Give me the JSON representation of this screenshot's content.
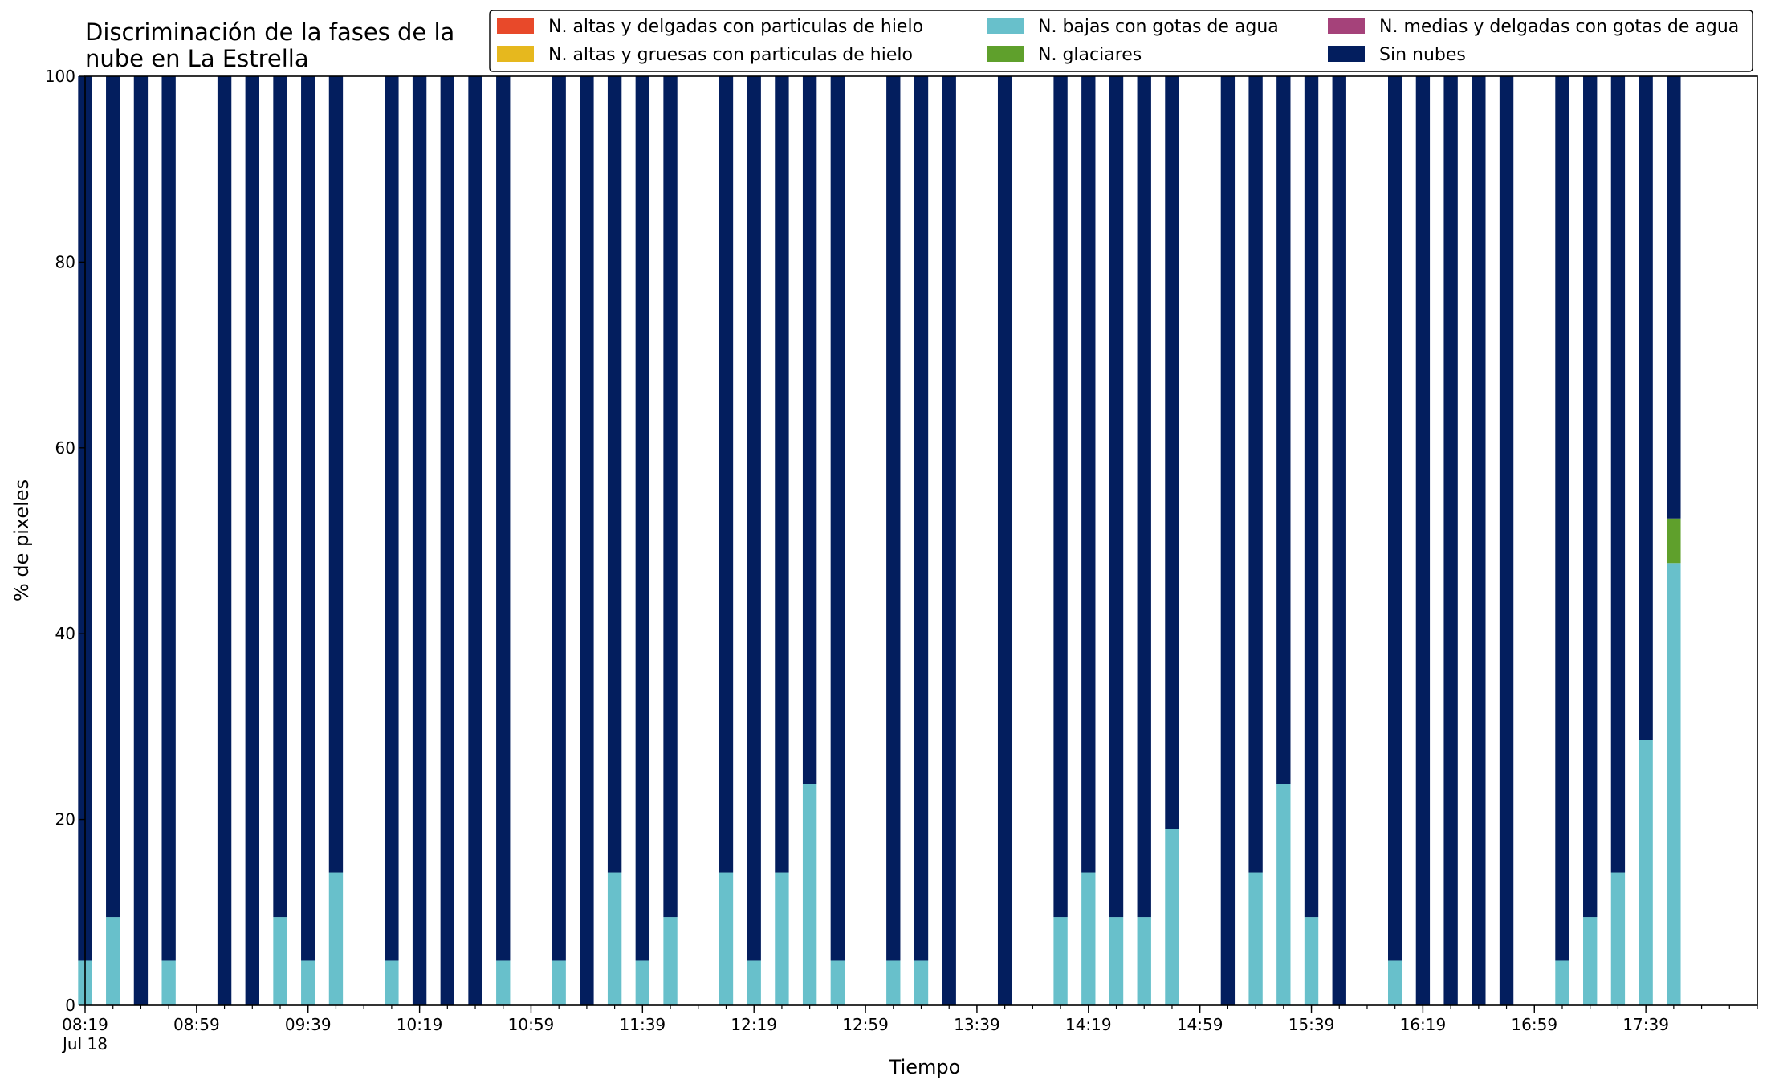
{
  "chart_data": {
    "type": "bar",
    "stacked": true,
    "title_lines": [
      "Discriminación de la fases de la",
      "nube en La Estrella"
    ],
    "xlabel": "Tiempo",
    "ylabel": "% de pixeles",
    "ylim": [
      0,
      100
    ],
    "yticks": [
      "0",
      "20",
      "40",
      "60",
      "80",
      "100"
    ],
    "x_start": "08:19",
    "x_end": "18:19",
    "x_step_minutes": 10,
    "x_minor_tick_step_minutes": 10,
    "x_major_tick_labels": [
      "08:19",
      "08:59",
      "09:39",
      "10:19",
      "10:59",
      "11:39",
      "12:19",
      "12:59",
      "13:39",
      "14:19",
      "14:59",
      "15:39",
      "16:19",
      "16:59",
      "17:39"
    ],
    "x_date_label": "Jul 18",
    "grid": false,
    "legend_position": "top-right",
    "legend_columns": 3,
    "categories": [
      "08:19",
      "08:29",
      "08:39",
      "08:49",
      "08:59",
      "09:09",
      "09:19",
      "09:29",
      "09:39",
      "09:49",
      "09:59",
      "10:09",
      "10:19",
      "10:29",
      "10:39",
      "10:49",
      "10:59",
      "11:09",
      "11:19",
      "11:29",
      "11:39",
      "11:49",
      "11:59",
      "12:09",
      "12:19",
      "12:29",
      "12:39",
      "12:49",
      "12:59",
      "13:09",
      "13:19",
      "13:29",
      "13:39",
      "13:49",
      "13:59",
      "14:09",
      "14:19",
      "14:29",
      "14:39",
      "14:49",
      "14:59",
      "15:09",
      "15:19",
      "15:29",
      "15:39",
      "15:49",
      "15:59",
      "16:09",
      "16:19",
      "16:29",
      "16:39",
      "16:49",
      "16:59",
      "17:09",
      "17:19",
      "17:29",
      "17:39",
      "17:49"
    ],
    "series": [
      {
        "name": "N. altas y delgadas con particulas de hielo",
        "color": "#e8492a",
        "values": [
          0,
          0,
          0,
          0,
          0,
          0,
          0,
          0,
          0,
          0,
          0,
          0,
          0,
          0,
          0,
          0,
          0,
          0,
          0,
          0,
          0,
          0,
          0,
          0,
          0,
          0,
          0,
          0,
          0,
          0,
          0,
          0,
          0,
          0,
          0,
          0,
          0,
          0,
          0,
          0,
          0,
          0,
          0,
          0,
          0,
          0,
          0,
          0,
          0,
          0,
          0,
          0,
          0,
          0,
          0,
          0,
          0,
          0
        ]
      },
      {
        "name": "N. altas y gruesas con particulas de hielo",
        "color": "#e6b81e",
        "values": [
          0,
          0,
          0,
          0,
          0,
          0,
          0,
          0,
          0,
          0,
          0,
          0,
          0,
          0,
          0,
          0,
          0,
          0,
          0,
          0,
          0,
          0,
          0,
          0,
          0,
          0,
          0,
          0,
          0,
          0,
          0,
          0,
          0,
          0,
          0,
          0,
          0,
          0,
          0,
          0,
          0,
          0,
          0,
          0,
          0,
          0,
          0,
          0,
          0,
          0,
          0,
          0,
          0,
          0,
          0,
          0,
          0,
          0
        ]
      },
      {
        "name": "N. bajas con gotas de agua",
        "color": "#68c0cb",
        "values": [
          4.8,
          9.5,
          0,
          4.8,
          null,
          0,
          0,
          9.5,
          4.8,
          14.3,
          null,
          4.8,
          0,
          0,
          0,
          4.8,
          null,
          4.8,
          0,
          14.3,
          4.8,
          9.5,
          null,
          14.3,
          4.8,
          14.3,
          23.8,
          4.8,
          null,
          4.8,
          4.8,
          0,
          null,
          0,
          null,
          9.5,
          14.3,
          9.5,
          9.5,
          19.0,
          null,
          0,
          14.3,
          23.8,
          9.5,
          0,
          null,
          4.8,
          0,
          0,
          0,
          0,
          null,
          4.8,
          9.5,
          14.3,
          28.6,
          47.6
        ]
      },
      {
        "name": "N. glaciares",
        "color": "#5fa02c",
        "values": [
          0,
          0,
          0,
          0,
          null,
          0,
          0,
          0,
          0,
          0,
          null,
          0,
          0,
          0,
          0,
          0,
          null,
          0,
          0,
          0,
          0,
          0,
          null,
          0,
          0,
          0,
          0,
          0,
          null,
          0,
          0,
          0,
          null,
          0,
          null,
          0,
          0,
          0,
          0,
          0,
          null,
          0,
          0,
          0,
          0,
          0,
          null,
          0,
          0,
          0,
          0,
          0,
          null,
          0,
          0,
          0,
          0,
          4.8
        ]
      },
      {
        "name": "N. medias y delgadas con gotas de agua",
        "color": "#a5427a",
        "values": [
          0,
          0,
          0,
          0,
          0,
          0,
          0,
          0,
          0,
          0,
          0,
          0,
          0,
          0,
          0,
          0,
          0,
          0,
          0,
          0,
          0,
          0,
          0,
          0,
          0,
          0,
          0,
          0,
          0,
          0,
          0,
          0,
          0,
          0,
          0,
          0,
          0,
          0,
          0,
          0,
          0,
          0,
          0,
          0,
          0,
          0,
          0,
          0,
          0,
          0,
          0,
          0,
          0,
          0,
          0,
          0,
          0,
          0
        ]
      },
      {
        "name": "Sin nubes",
        "color": "#031e5e",
        "values": [
          95.2,
          90.5,
          100,
          95.2,
          null,
          100,
          100,
          90.5,
          95.2,
          85.7,
          null,
          95.2,
          100,
          100,
          100,
          95.2,
          null,
          95.2,
          100,
          85.7,
          95.2,
          90.5,
          null,
          85.7,
          95.2,
          85.7,
          76.2,
          95.2,
          null,
          95.2,
          95.2,
          100,
          null,
          100,
          null,
          90.5,
          85.7,
          90.5,
          90.5,
          81.0,
          null,
          100,
          85.7,
          76.2,
          90.5,
          100,
          null,
          95.2,
          100,
          100,
          100,
          100,
          null,
          95.2,
          90.5,
          85.7,
          71.4,
          47.6
        ]
      }
    ]
  }
}
